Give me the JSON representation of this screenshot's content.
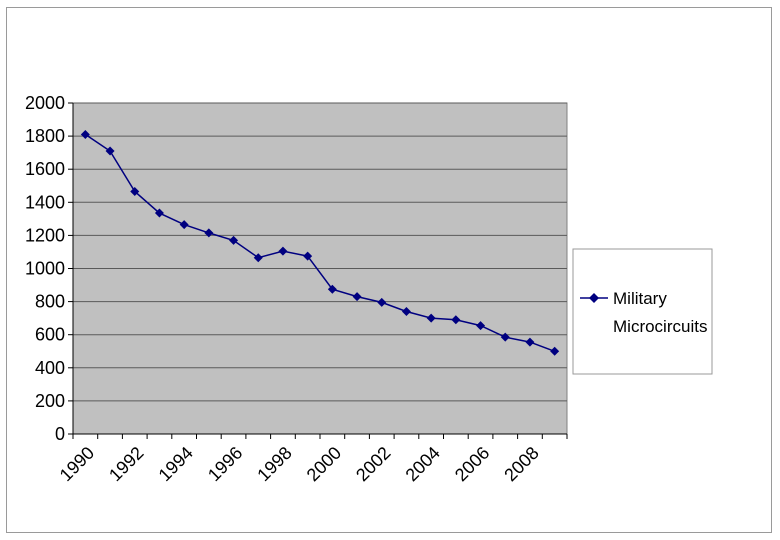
{
  "chart_data": {
    "type": "line",
    "title": "",
    "xlabel": "",
    "ylabel": "",
    "x": [
      1990,
      1991,
      1992,
      1993,
      1994,
      1995,
      1996,
      1997,
      1998,
      1999,
      2000,
      2001,
      2002,
      2003,
      2004,
      2005,
      2006,
      2007,
      2008,
      2009
    ],
    "x_tick_labels": [
      "1990",
      "1992",
      "1994",
      "1996",
      "1998",
      "2000",
      "2002",
      "2004",
      "2006",
      "2008"
    ],
    "y_tick_labels": [
      "0",
      "200",
      "400",
      "600",
      "800",
      "1000",
      "1200",
      "1400",
      "1600",
      "1800",
      "2000"
    ],
    "ylim": [
      0,
      2000
    ],
    "grid": true,
    "legend_position": "right",
    "series": [
      {
        "legend_line1": "Military",
        "legend_line2": "Microcircuits",
        "values": [
          1810,
          1710,
          1465,
          1335,
          1265,
          1215,
          1170,
          1065,
          1105,
          1075,
          875,
          830,
          795,
          740,
          700,
          690,
          655,
          585,
          555,
          500
        ],
        "color": "#000080",
        "marker": "diamond"
      }
    ],
    "plot_background": "#c0c0c0",
    "gridline_color": "#5a5a5a"
  }
}
